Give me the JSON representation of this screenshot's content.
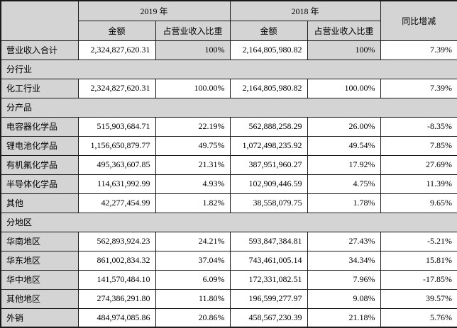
{
  "colors": {
    "shading": "#d4d4d4",
    "border": "#1a1a1a",
    "cell_background": "#ffffff",
    "text": "#000000"
  },
  "table": {
    "header": {
      "corner": "",
      "year_2019": "2019 年",
      "year_2018": "2018 年",
      "yoy": "同比增减",
      "amount_2019": "金额",
      "ratio_2019": "占营业收入比重",
      "amount_2018": "金额",
      "ratio_2018": "占营业收入比重"
    },
    "rows": [
      {
        "type": "data",
        "gray_pct": true,
        "label": "营业收入合计",
        "a2019": "2,324,827,620.31",
        "p2019": "100%",
        "a2018": "2,164,805,980.82",
        "p2018": "100%",
        "yoy": "7.39%"
      },
      {
        "type": "section",
        "label": "分行业"
      },
      {
        "type": "data",
        "label": "化工行业",
        "a2019": "2,324,827,620.31",
        "p2019": "100.00%",
        "a2018": "2,164,805,980.82",
        "p2018": "100.00%",
        "yoy": "7.39%"
      },
      {
        "type": "section",
        "label": "分产品"
      },
      {
        "type": "data",
        "label": "电容器化学品",
        "a2019": "515,903,684.71",
        "p2019": "22.19%",
        "a2018": "562,888,258.29",
        "p2018": "26.00%",
        "yoy": "-8.35%"
      },
      {
        "type": "data",
        "label": "锂电池化学品",
        "a2019": "1,156,650,879.77",
        "p2019": "49.75%",
        "a2018": "1,072,498,235.92",
        "p2018": "49.54%",
        "yoy": "7.85%"
      },
      {
        "type": "data",
        "label": "有机氟化学品",
        "a2019": "495,363,607.85",
        "p2019": "21.31%",
        "a2018": "387,951,960.27",
        "p2018": "17.92%",
        "yoy": "27.69%"
      },
      {
        "type": "data",
        "label": "半导体化学品",
        "a2019": "114,631,992.99",
        "p2019": "4.93%",
        "a2018": "102,909,446.59",
        "p2018": "4.75%",
        "yoy": "11.39%"
      },
      {
        "type": "data",
        "label": "其他",
        "a2019": "42,277,454.99",
        "p2019": "1.82%",
        "a2018": "38,558,079.75",
        "p2018": "1.78%",
        "yoy": "9.65%"
      },
      {
        "type": "section",
        "label": "分地区"
      },
      {
        "type": "data",
        "label": "华南地区",
        "a2019": "562,893,924.23",
        "p2019": "24.21%",
        "a2018": "593,847,384.81",
        "p2018": "27.43%",
        "yoy": "-5.21%"
      },
      {
        "type": "data",
        "label": "华东地区",
        "a2019": "861,002,834.32",
        "p2019": "37.04%",
        "a2018": "743,461,005.14",
        "p2018": "34.34%",
        "yoy": "15.81%"
      },
      {
        "type": "data",
        "label": "华中地区",
        "a2019": "141,570,484.10",
        "p2019": "6.09%",
        "a2018": "172,331,082.51",
        "p2018": "7.96%",
        "yoy": "-17.85%"
      },
      {
        "type": "data",
        "label": "其他地区",
        "a2019": "274,386,291.80",
        "p2019": "11.80%",
        "a2018": "196,599,277.97",
        "p2018": "9.08%",
        "yoy": "39.57%"
      },
      {
        "type": "data",
        "label": "外销",
        "a2019": "484,974,085.86",
        "p2019": "20.86%",
        "a2018": "458,567,230.39",
        "p2018": "21.18%",
        "yoy": "5.76%"
      }
    ]
  }
}
